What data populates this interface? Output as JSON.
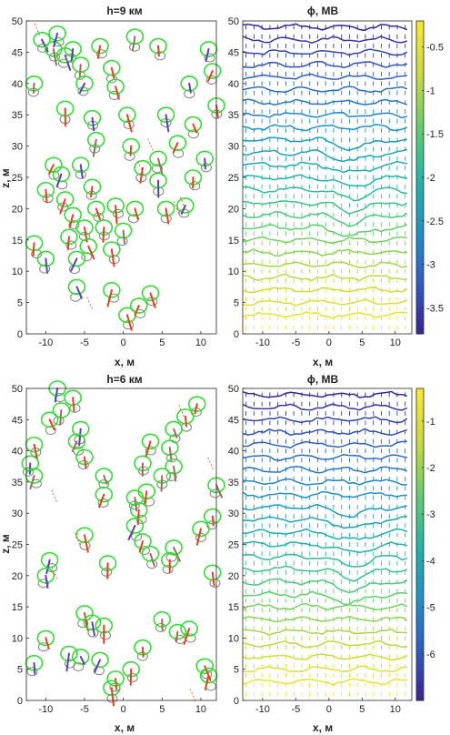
{
  "chart_data": [
    {
      "type": "scatter",
      "title": "h=9 км",
      "xlabel": "x, м",
      "ylabel": "z, м",
      "xlim": [
        -12.5,
        12
      ],
      "ylim": [
        0,
        50
      ],
      "xticks": [
        -10,
        -5,
        0,
        5,
        10
      ],
      "yticks": [
        0,
        5,
        10,
        15,
        20,
        25,
        30,
        35,
        40,
        45,
        50
      ],
      "grid": false,
      "circle_color_upper": "#33dd33",
      "circle_color_lower": "#808080",
      "pairs": [
        {
          "x": -10.5,
          "z": 47.0
        },
        {
          "x": -9.0,
          "z": 45.5
        },
        {
          "x": -8.5,
          "z": 48.0
        },
        {
          "x": -7.5,
          "z": 44.5
        },
        {
          "x": -6.5,
          "z": 45.5
        },
        {
          "x": -5.5,
          "z": 43.0
        },
        {
          "x": -3.0,
          "z": 46.0
        },
        {
          "x": -1.5,
          "z": 42.5
        },
        {
          "x": 1.5,
          "z": 47.5
        },
        {
          "x": 4.5,
          "z": 46.0
        },
        {
          "x": 11.0,
          "z": 45.5
        },
        {
          "x": -11.5,
          "z": 40.0
        },
        {
          "x": -5.0,
          "z": 40.0
        },
        {
          "x": -1.0,
          "z": 39.5
        },
        {
          "x": 8.5,
          "z": 40.0
        },
        {
          "x": 12.0,
          "z": 36.5
        },
        {
          "x": -7.5,
          "z": 36.0
        },
        {
          "x": -4.0,
          "z": 34.5
        },
        {
          "x": 0.5,
          "z": 35.0
        },
        {
          "x": 5.5,
          "z": 35.0
        },
        {
          "x": 9.0,
          "z": 33.5
        },
        {
          "x": -3.5,
          "z": 31.0
        },
        {
          "x": 1.0,
          "z": 30.0
        },
        {
          "x": 4.5,
          "z": 28.0
        },
        {
          "x": -9.0,
          "z": 27.0
        },
        {
          "x": -5.5,
          "z": 27.0
        },
        {
          "x": -8.0,
          "z": 25.5
        },
        {
          "x": 2.5,
          "z": 26.5
        },
        {
          "x": -4.0,
          "z": 23.5
        },
        {
          "x": 4.5,
          "z": 24.5
        },
        {
          "x": 9.0,
          "z": 25.0
        },
        {
          "x": -10.0,
          "z": 23.0
        },
        {
          "x": -7.5,
          "z": 21.5
        },
        {
          "x": -6.5,
          "z": 19.0
        },
        {
          "x": -3.5,
          "z": 20.0
        },
        {
          "x": -1.0,
          "z": 20.5
        },
        {
          "x": 1.5,
          "z": 20.0
        },
        {
          "x": 5.5,
          "z": 20.0
        },
        {
          "x": 8.0,
          "z": 20.5
        },
        {
          "x": -5.0,
          "z": 17.0
        },
        {
          "x": -2.5,
          "z": 17.0
        },
        {
          "x": 0.0,
          "z": 16.5
        },
        {
          "x": -7.0,
          "z": 15.5
        },
        {
          "x": -11.5,
          "z": 14.5
        },
        {
          "x": -4.5,
          "z": 14.0
        },
        {
          "x": -1.5,
          "z": 13.5
        },
        {
          "x": -10.0,
          "z": 12.0
        },
        {
          "x": -6.0,
          "z": 12.0
        },
        {
          "x": -6.0,
          "z": 7.5
        },
        {
          "x": -1.5,
          "z": 7.0
        },
        {
          "x": 3.5,
          "z": 6.5
        },
        {
          "x": 0.5,
          "z": 3.0
        },
        {
          "x": 2.0,
          "z": 4.5
        },
        {
          "x": 11.5,
          "z": 42.0
        },
        {
          "x": 7.0,
          "z": 30.5
        },
        {
          "x": 10.5,
          "z": 28.0
        }
      ]
    },
    {
      "type": "contour+quiver",
      "title": "ϕ, МВ",
      "xlabel": "x, м",
      "xlim": [
        -13,
        12.5
      ],
      "ylim": [
        0,
        50
      ],
      "xticks": [
        -10,
        -5,
        0,
        5,
        10
      ],
      "yticks": [
        0,
        5,
        10,
        15,
        20,
        25,
        30,
        35,
        40,
        45,
        50
      ],
      "colorbar_ticks": [
        "-0.5",
        "-1",
        "-1.5",
        "-2",
        "-2.5",
        "-3",
        "-3.5"
      ],
      "colorbar_range": [
        -3.8,
        -0.2
      ],
      "colormap": [
        "#3a1f8f",
        "#2e5cc2",
        "#1f8fc9",
        "#1fb5a8",
        "#5fcf6b",
        "#c9d93a",
        "#f7e82a"
      ],
      "contour_levels_z": [
        49,
        47,
        45,
        43,
        41,
        39,
        37,
        35,
        33,
        31,
        29,
        27,
        25,
        23,
        21,
        19,
        17,
        15,
        13,
        11,
        9,
        7,
        5,
        3
      ]
    },
    {
      "type": "scatter",
      "title": "h=6 км",
      "xlabel": "x, м",
      "ylabel": "z, м",
      "xlim": [
        -12.5,
        12
      ],
      "ylim": [
        0,
        50
      ],
      "xticks": [
        -10,
        -5,
        0,
        5,
        10
      ],
      "yticks": [
        0,
        5,
        10,
        15,
        20,
        25,
        30,
        35,
        40,
        45,
        50
      ],
      "grid": false,
      "circle_color_upper": "#33dd33",
      "circle_color_lower": "#808080",
      "pairs": [
        {
          "x": -8.5,
          "z": 50.0
        },
        {
          "x": -6.5,
          "z": 48.5
        },
        {
          "x": -8.0,
          "z": 46.5
        },
        {
          "x": -9.5,
          "z": 45.0
        },
        {
          "x": -11.5,
          "z": 41.0
        },
        {
          "x": -12.0,
          "z": 38.0
        },
        {
          "x": -11.5,
          "z": 36.0
        },
        {
          "x": -5.5,
          "z": 43.5
        },
        {
          "x": -6.0,
          "z": 41.5
        },
        {
          "x": -5.0,
          "z": 39.0
        },
        {
          "x": 9.5,
          "z": 47.5
        },
        {
          "x": 8.0,
          "z": 45.5
        },
        {
          "x": 6.5,
          "z": 43.5
        },
        {
          "x": 6.0,
          "z": 40.5
        },
        {
          "x": 3.5,
          "z": 41.5
        },
        {
          "x": 2.5,
          "z": 38.0
        },
        {
          "x": 5.0,
          "z": 36.0
        },
        {
          "x": 6.5,
          "z": 37.5
        },
        {
          "x": -2.5,
          "z": 36.0
        },
        {
          "x": -2.5,
          "z": 33.0
        },
        {
          "x": 1.5,
          "z": 32.5
        },
        {
          "x": 3.0,
          "z": 33.5
        },
        {
          "x": 2.0,
          "z": 30.5
        },
        {
          "x": 1.5,
          "z": 28.0
        },
        {
          "x": 2.5,
          "z": 25.5
        },
        {
          "x": 3.5,
          "z": 23.5
        },
        {
          "x": 6.5,
          "z": 24.5
        },
        {
          "x": 6.0,
          "z": 22.5
        },
        {
          "x": -5.0,
          "z": 26.5
        },
        {
          "x": -9.5,
          "z": 22.5
        },
        {
          "x": -10.0,
          "z": 20.0
        },
        {
          "x": -2.0,
          "z": 22.0
        },
        {
          "x": 12.0,
          "z": 34.5
        },
        {
          "x": 11.5,
          "z": 29.5
        },
        {
          "x": 11.5,
          "z": 20.5
        },
        {
          "x": 10.0,
          "z": 27.5
        },
        {
          "x": -5.0,
          "z": 14.0
        },
        {
          "x": -4.0,
          "z": 12.5
        },
        {
          "x": -2.5,
          "z": 12.0
        },
        {
          "x": -10.0,
          "z": 10.0
        },
        {
          "x": -7.0,
          "z": 7.5
        },
        {
          "x": -5.5,
          "z": 7.0
        },
        {
          "x": -3.0,
          "z": 6.5
        },
        {
          "x": -11.5,
          "z": 6.0
        },
        {
          "x": -1.0,
          "z": 3.5
        },
        {
          "x": 1.0,
          "z": 5.0
        },
        {
          "x": 2.5,
          "z": 8.5
        },
        {
          "x": 5.0,
          "z": 13.0
        },
        {
          "x": 7.0,
          "z": 11.0
        },
        {
          "x": 8.5,
          "z": 11.5
        },
        {
          "x": 10.5,
          "z": 5.5
        },
        {
          "x": 11.0,
          "z": 4.0
        },
        {
          "x": -1.5,
          "z": 2.0
        }
      ]
    },
    {
      "type": "contour+quiver",
      "title": "ϕ, МВ",
      "xlabel": "x, м",
      "xlim": [
        -13,
        12.5
      ],
      "ylim": [
        0,
        50
      ],
      "xticks": [
        -10,
        -5,
        0,
        5,
        10
      ],
      "yticks": [
        0,
        5,
        10,
        15,
        20,
        25,
        30,
        35,
        40,
        45,
        50
      ],
      "colorbar_ticks": [
        "-1",
        "-2",
        "-3",
        "-4",
        "-5",
        "-6"
      ],
      "colorbar_range": [
        -7.0,
        -0.3
      ],
      "colormap": [
        "#3a1f8f",
        "#2e5cc2",
        "#1f8fc9",
        "#1fb5a8",
        "#5fcf6b",
        "#c9d93a",
        "#f7e82a"
      ],
      "contour_levels_z": [
        49,
        47,
        45,
        43,
        41,
        39,
        37,
        35,
        33,
        31,
        29,
        27,
        25,
        23,
        21,
        19,
        17,
        15,
        13,
        11,
        9,
        7,
        5,
        3
      ]
    }
  ]
}
